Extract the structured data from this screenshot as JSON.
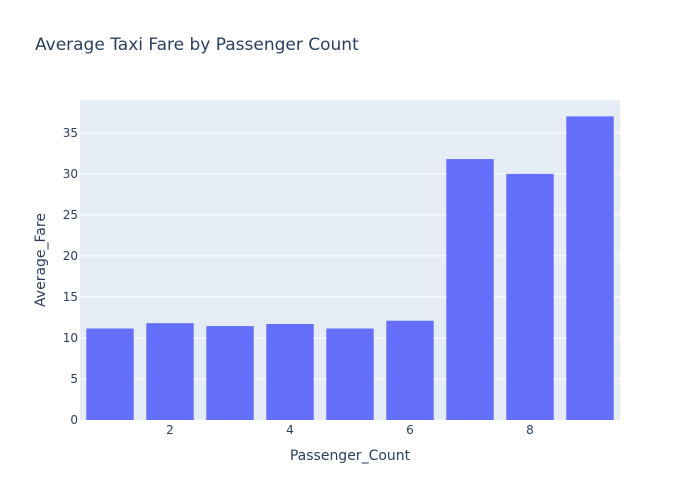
{
  "chart_data": {
    "type": "bar",
    "title": "Average Taxi Fare by Passenger Count",
    "xlabel": "Passenger_Count",
    "ylabel": "Average_Fare",
    "x": [
      1,
      2,
      3,
      4,
      5,
      6,
      7,
      8,
      9
    ],
    "values": [
      11.15,
      11.8,
      11.45,
      11.7,
      11.15,
      12.1,
      31.8,
      30.0,
      37.0
    ],
    "xlim": [
      0.5,
      9.5
    ],
    "ylim": [
      0,
      39
    ],
    "xticks": [
      2,
      4,
      6,
      8
    ],
    "yticks": [
      0,
      5,
      10,
      15,
      20,
      25,
      30,
      35
    ],
    "grid": true,
    "colors": {
      "bar": "#636efa",
      "plot_bg": "#e5ecf6",
      "grid": "#ffffff",
      "text": "#2a3f5f"
    }
  }
}
